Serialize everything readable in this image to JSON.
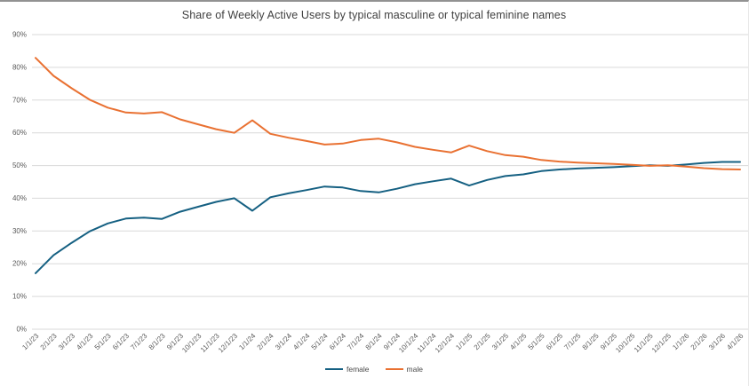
{
  "title": "Share of Weekly Active Users by typical masculine or typical feminine names",
  "colors": {
    "female": "#156082",
    "male": "#E97132",
    "gridline": "#D9D9D9",
    "axis_text": "#595959",
    "title_text": "#404040",
    "background": "#FFFFFF"
  },
  "chart_data": {
    "type": "line",
    "title": "Share of Weekly Active Users by typical masculine or typical feminine names",
    "xlabel": "",
    "ylabel": "",
    "ylim": [
      0,
      90
    ],
    "grid": true,
    "legend_position": "bottom-center",
    "ytick_labels": [
      "0%",
      "10%",
      "20%",
      "30%",
      "40%",
      "50%",
      "60%",
      "70%",
      "80%",
      "90%"
    ],
    "x": [
      "1/1/23",
      "2/1/23",
      "3/1/23",
      "4/1/23",
      "5/1/23",
      "6/1/23",
      "7/1/23",
      "8/1/23",
      "9/1/23",
      "10/1/23",
      "11/1/23",
      "12/1/23",
      "1/1/24",
      "2/1/24",
      "3/1/24",
      "4/1/24",
      "5/1/24",
      "6/1/24",
      "7/1/24",
      "8/1/24",
      "9/1/24",
      "10/1/24",
      "11/1/24",
      "12/1/24",
      "1/1/25",
      "2/1/25",
      "3/1/25",
      "4/1/25",
      "5/1/25",
      "6/1/25",
      "7/1/25",
      "8/1/25",
      "9/1/25",
      "10/1/25",
      "11/1/25",
      "12/1/25",
      "1/1/26",
      "2/1/26",
      "3/1/26",
      "4/1/26"
    ],
    "series": [
      {
        "name": "female",
        "color": "#156082",
        "values": [
          17.1,
          22.6,
          26.4,
          29.9,
          32.3,
          33.8,
          34.1,
          33.7,
          35.9,
          37.4,
          38.9,
          40.0,
          36.2,
          40.3,
          41.5,
          42.5,
          43.6,
          43.3,
          42.2,
          41.8,
          42.9,
          44.3,
          45.2,
          46.0,
          43.9,
          45.6,
          46.8,
          47.3,
          48.3,
          48.8,
          49.1,
          49.3,
          49.5,
          49.8,
          50.1,
          49.9,
          50.3,
          50.8,
          51.1,
          51.1
        ]
      },
      {
        "name": "male",
        "color": "#E97132",
        "values": [
          82.9,
          77.4,
          73.6,
          70.1,
          67.7,
          66.2,
          65.9,
          66.3,
          64.1,
          62.6,
          61.1,
          60.0,
          63.8,
          59.7,
          58.5,
          57.5,
          56.4,
          56.7,
          57.8,
          58.2,
          57.1,
          55.7,
          54.8,
          54.0,
          56.1,
          54.4,
          53.2,
          52.7,
          51.7,
          51.2,
          50.9,
          50.7,
          50.5,
          50.2,
          49.9,
          50.1,
          49.7,
          49.2,
          48.9,
          48.8
        ]
      }
    ]
  },
  "legend": {
    "items": [
      {
        "label": "female",
        "color": "#156082"
      },
      {
        "label": "male",
        "color": "#E97132"
      }
    ]
  }
}
